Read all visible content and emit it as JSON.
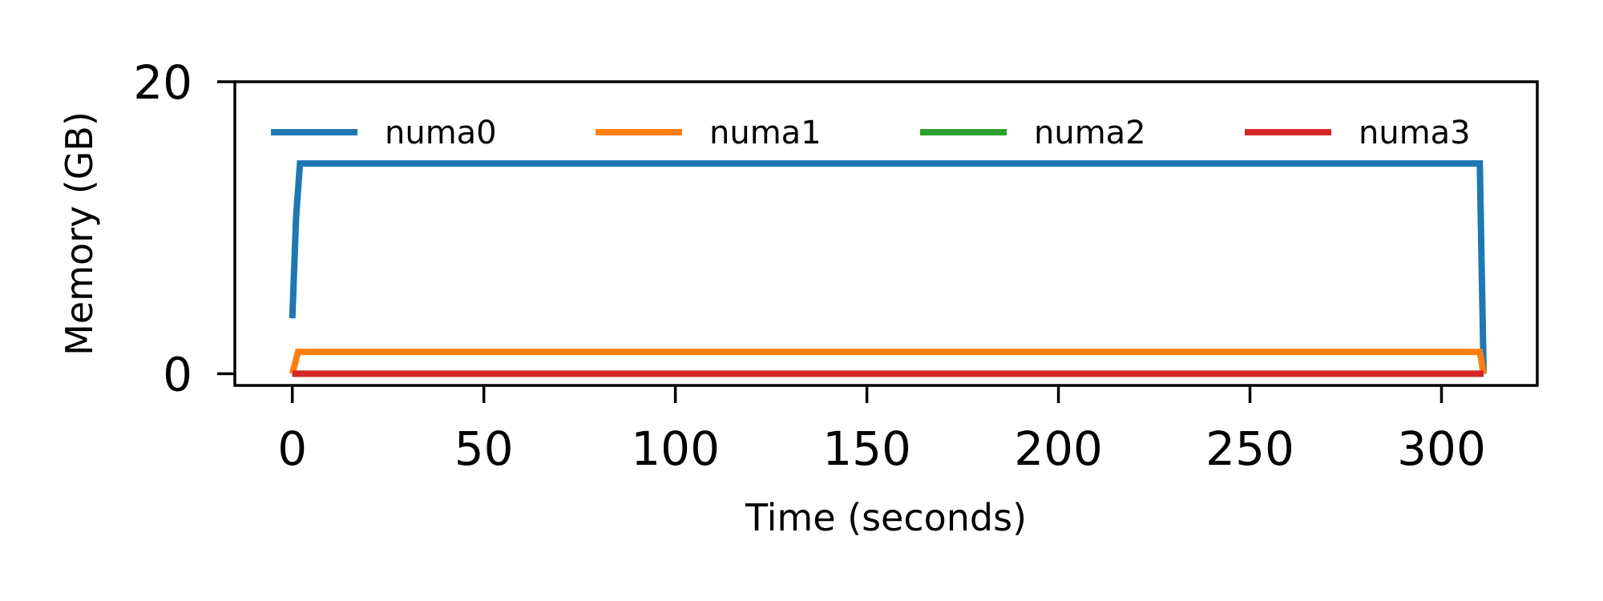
{
  "chart_data": {
    "type": "line",
    "xlabel": "Time (seconds)",
    "ylabel": "Memory (GB)",
    "xlim": [
      -15,
      325
    ],
    "ylim": [
      -0.8,
      20
    ],
    "xticks": [
      0,
      50,
      100,
      150,
      200,
      250,
      300
    ],
    "yticks": [
      0,
      20
    ],
    "grid": false,
    "legend_position": "top",
    "series": [
      {
        "name": "numa0",
        "color": "#1f77b4",
        "x": [
          0,
          1,
          2,
          310,
          310.5,
          311
        ],
        "y": [
          3.8,
          10.8,
          14.4,
          14.4,
          7,
          0
        ]
      },
      {
        "name": "numa1",
        "color": "#ff7f0e",
        "x": [
          0,
          1.5,
          2,
          309,
          310,
          311
        ],
        "y": [
          0,
          1.5,
          1.5,
          1.5,
          1.5,
          0
        ]
      },
      {
        "name": "numa2",
        "color": "#2ca02c",
        "x": [
          0,
          311
        ],
        "y": [
          0,
          0
        ]
      },
      {
        "name": "numa3",
        "color": "#d62728",
        "x": [
          0,
          311
        ],
        "y": [
          0,
          0
        ]
      }
    ]
  }
}
